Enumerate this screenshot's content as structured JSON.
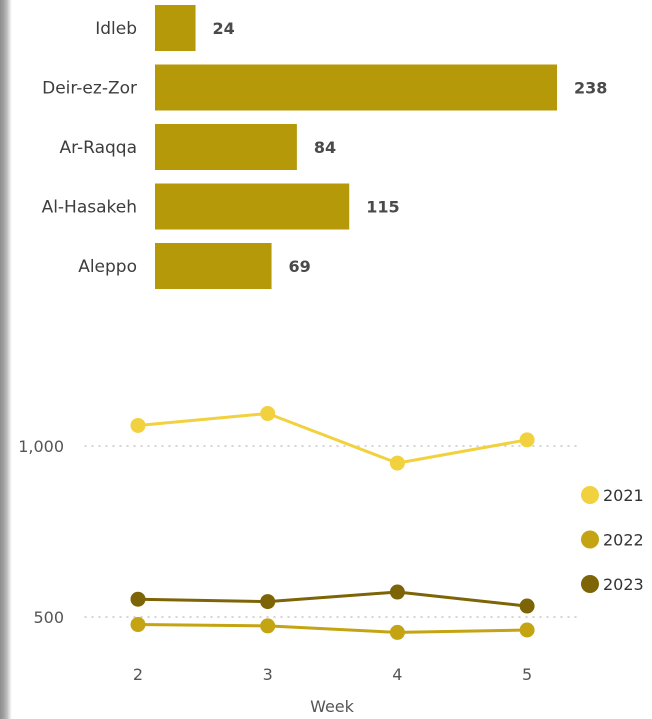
{
  "colors": {
    "bar": "#b69908",
    "series_2021": "#f2d13f",
    "series_2022": "#c4a412",
    "series_2023": "#7d6406",
    "grid": "#c8c8c8"
  },
  "chart_data": [
    {
      "type": "bar",
      "orientation": "horizontal",
      "categories": [
        "Idleb",
        "Deir-ez-Zor",
        "Ar-Raqqa",
        "Al-Hasakeh",
        "Aleppo"
      ],
      "values": [
        24,
        238,
        84,
        115,
        69
      ],
      "data_labels": [
        "24",
        "238",
        "84",
        "115",
        "69"
      ],
      "title": "",
      "xlabel": "",
      "ylabel": "",
      "grid": false
    },
    {
      "type": "line",
      "x": [
        2,
        3,
        4,
        5
      ],
      "x_tick_labels": [
        "2",
        "3",
        "4",
        "5"
      ],
      "xlabel": "Week",
      "y_tick_values": [
        1000,
        500
      ],
      "y_tick_labels": [
        "1,000",
        "500"
      ],
      "ylim": [
        440,
        1140
      ],
      "grid": true,
      "legend_position": "right",
      "series": [
        {
          "name": "2021",
          "values": [
            1060,
            1095,
            950,
            1018
          ]
        },
        {
          "name": "2022",
          "values": [
            478,
            474,
            455,
            462
          ]
        },
        {
          "name": "2023",
          "values": [
            552,
            545,
            573,
            532
          ]
        }
      ]
    }
  ]
}
